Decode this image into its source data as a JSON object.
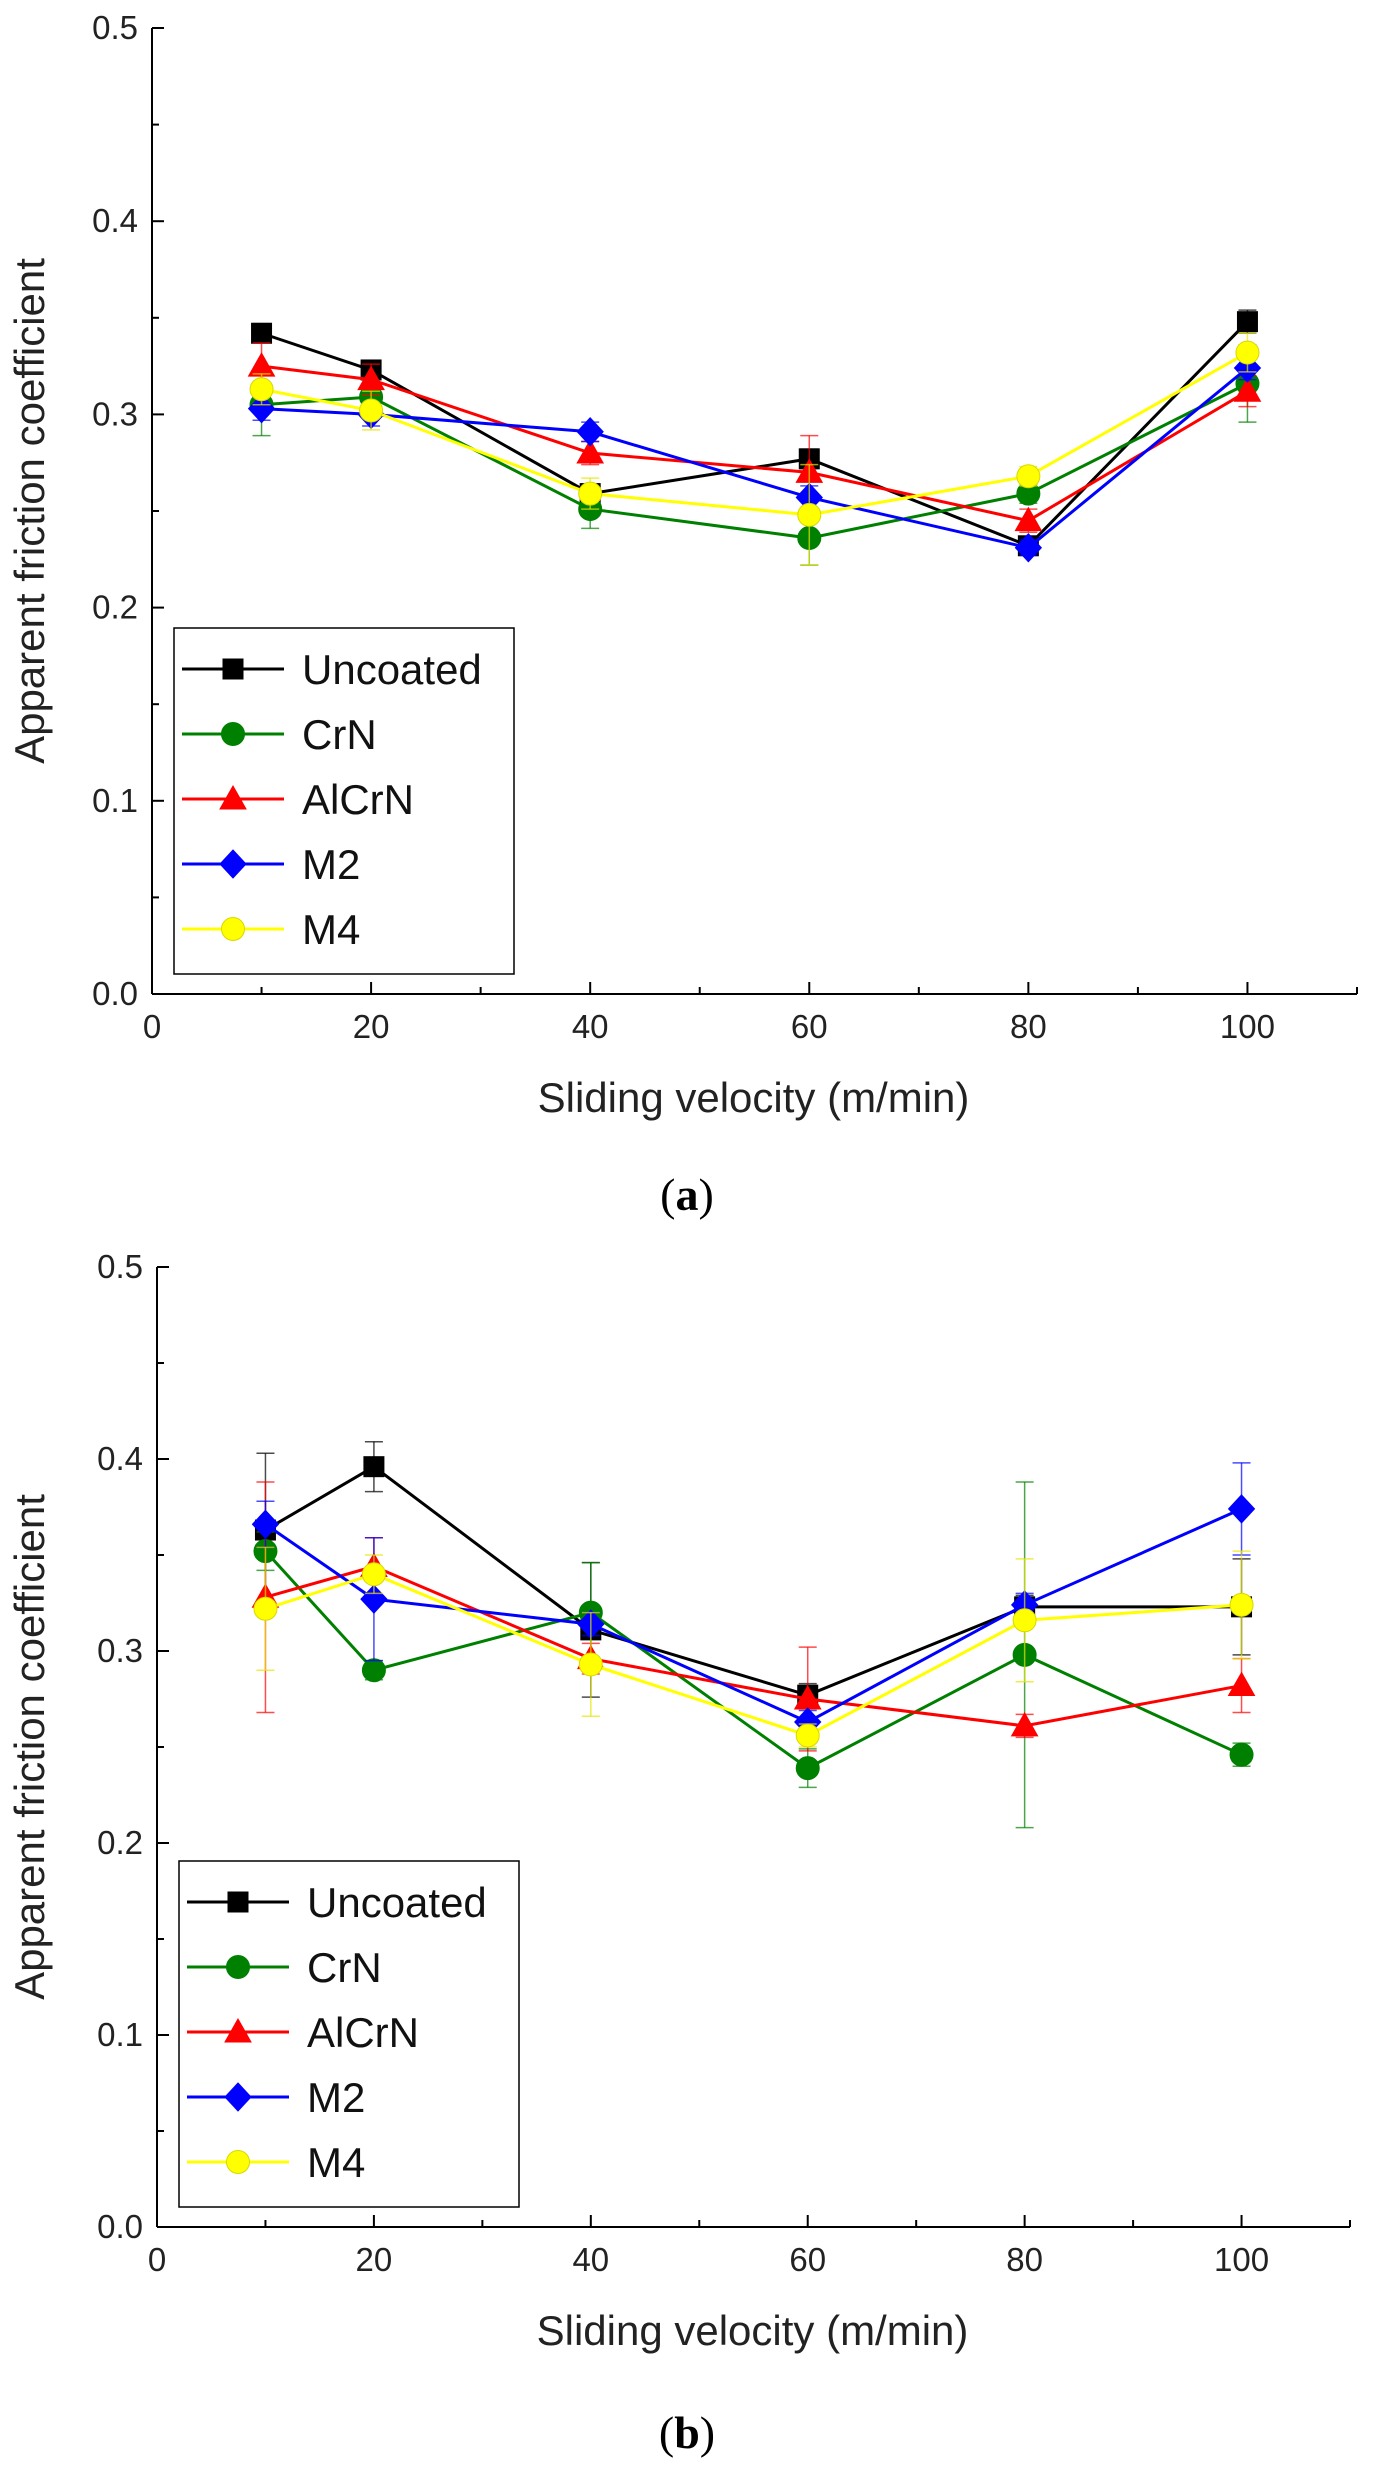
{
  "chart_data": [
    {
      "type": "line",
      "panel": "a",
      "title": "",
      "xlabel": "Sliding velocity (m/min)",
      "ylabel": "Apparent friction coefficient",
      "xlim": [
        0,
        110
      ],
      "ylim": [
        0,
        0.5
      ],
      "x_ticks": [
        0,
        20,
        40,
        60,
        80,
        100
      ],
      "y_ticks": [
        0.0,
        0.1,
        0.2,
        0.3,
        0.4,
        0.5
      ],
      "x_tick_labels": [
        "0",
        "20",
        "40",
        "60",
        "80",
        "100"
      ],
      "y_tick_labels": [
        "0.0",
        "0.1",
        "0.2",
        "0.3",
        "0.4",
        "0.5"
      ],
      "grid": false,
      "legend_position": "bottom-left",
      "x": [
        10,
        20,
        40,
        60,
        80,
        100
      ],
      "series": [
        {
          "name": "Uncoated",
          "color": "#000000",
          "marker": "square",
          "values": [
            0.342,
            0.323,
            0.259,
            0.277,
            0.232,
            0.348
          ],
          "errors": [
            0.005,
            0.005,
            0.005,
            0.005,
            0.004,
            0.006
          ]
        },
        {
          "name": "CrN",
          "color": "#008000",
          "marker": "circle",
          "values": [
            0.305,
            0.309,
            0.251,
            0.236,
            0.259,
            0.316
          ],
          "errors": [
            0.016,
            0.006,
            0.01,
            0.014,
            0.005,
            0.02
          ]
        },
        {
          "name": "AlCrN",
          "color": "#ff0000",
          "marker": "triangle",
          "values": [
            0.325,
            0.318,
            0.28,
            0.27,
            0.245,
            0.312
          ],
          "errors": [
            0.012,
            0.008,
            0.006,
            0.019,
            0.006,
            0.008
          ]
        },
        {
          "name": "M2",
          "color": "#0000ff",
          "marker": "diamond",
          "values": [
            0.303,
            0.3,
            0.291,
            0.257,
            0.231,
            0.324
          ],
          "errors": [
            0.006,
            0.006,
            0.005,
            0.006,
            0.004,
            0.006
          ]
        },
        {
          "name": "M4",
          "color": "#ffff00",
          "marker": "circle",
          "values": [
            0.313,
            0.302,
            0.259,
            0.248,
            0.268,
            0.332
          ],
          "errors": [
            0.008,
            0.01,
            0.008,
            0.026,
            0.005,
            0.01
          ]
        }
      ]
    },
    {
      "type": "line",
      "panel": "b",
      "title": "",
      "xlabel": "Sliding velocity (m/min)",
      "ylabel": "Apparent friction coefficient",
      "xlim": [
        0,
        110
      ],
      "ylim": [
        0,
        0.5
      ],
      "x_ticks": [
        0,
        20,
        40,
        60,
        80,
        100
      ],
      "y_ticks": [
        0.0,
        0.1,
        0.2,
        0.3,
        0.4,
        0.5
      ],
      "x_tick_labels": [
        "0",
        "20",
        "40",
        "60",
        "80",
        "100"
      ],
      "y_tick_labels": [
        "0.0",
        "0.1",
        "0.2",
        "0.3",
        "0.4",
        "0.5"
      ],
      "grid": false,
      "legend_position": "bottom-left",
      "x": [
        10,
        20,
        40,
        60,
        80,
        100
      ],
      "series": [
        {
          "name": "Uncoated",
          "color": "#000000",
          "marker": "square",
          "values": [
            0.363,
            0.396,
            0.311,
            0.277,
            0.323,
            0.323
          ],
          "errors": [
            0.04,
            0.013,
            0.035,
            0.006,
            0.006,
            0.025
          ]
        },
        {
          "name": "CrN",
          "color": "#008000",
          "marker": "circle",
          "values": [
            0.352,
            0.29,
            0.32,
            0.239,
            0.298,
            0.246
          ],
          "errors": [
            0.01,
            0.005,
            0.026,
            0.01,
            0.09,
            0.006
          ]
        },
        {
          "name": "AlCrN",
          "color": "#ff0000",
          "marker": "triangle",
          "values": [
            0.328,
            0.344,
            0.296,
            0.275,
            0.261,
            0.282
          ],
          "errors": [
            0.06,
            0.015,
            0.008,
            0.027,
            0.006,
            0.014
          ]
        },
        {
          "name": "M2",
          "color": "#0000ff",
          "marker": "diamond",
          "values": [
            0.366,
            0.327,
            0.314,
            0.263,
            0.324,
            0.374
          ],
          "errors": [
            0.012,
            0.032,
            0.006,
            0.006,
            0.006,
            0.024
          ]
        },
        {
          "name": "M4",
          "color": "#ffff00",
          "marker": "circle",
          "values": [
            0.322,
            0.34,
            0.293,
            0.256,
            0.316,
            0.324
          ],
          "errors": [
            0.032,
            0.01,
            0.027,
            0.006,
            0.032,
            0.028
          ]
        }
      ]
    }
  ],
  "panels": [
    {
      "label_open": "(",
      "label_letter": "a",
      "label_close": ")"
    },
    {
      "label_open": "(",
      "label_letter": "b",
      "label_close": ")"
    }
  ]
}
